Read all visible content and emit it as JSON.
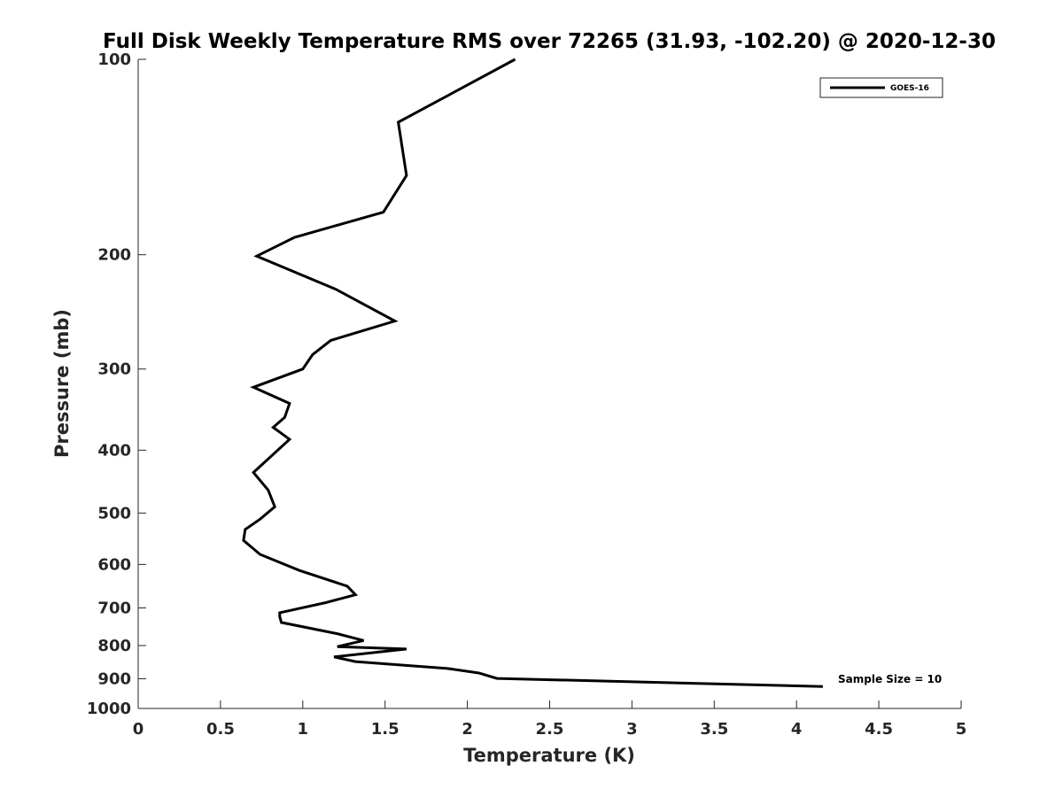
{
  "chart_data": {
    "type": "line",
    "title": "Full Disk Weekly Temperature RMS over 72265 (31.93, -102.20) @ 2020-12-30",
    "xlabel": "Temperature (K)",
    "ylabel": "Pressure (mb)",
    "xlim": [
      0,
      5
    ],
    "ylim": [
      1000,
      100
    ],
    "yscale": "log",
    "y_reversed": true,
    "grid": false,
    "legend_position": "top-right",
    "x_ticks": [
      "0",
      "0.5",
      "1",
      "1.5",
      "2",
      "2.5",
      "3",
      "3.5",
      "4",
      "4.5",
      "5"
    ],
    "y_ticks": [
      "100",
      "200",
      "300",
      "400",
      "500",
      "600",
      "700",
      "800",
      "900",
      "1000"
    ],
    "series": [
      {
        "name": "GOES-16",
        "color": "#000000",
        "points": [
          [
            2.29,
            100
          ],
          [
            1.58,
            125
          ],
          [
            1.63,
            151
          ],
          [
            1.49,
            172
          ],
          [
            0.95,
            188
          ],
          [
            0.72,
            201
          ],
          [
            1.2,
            226
          ],
          [
            1.56,
            253
          ],
          [
            1.17,
            271
          ],
          [
            1.06,
            285
          ],
          [
            1.0,
            300
          ],
          [
            0.7,
            320
          ],
          [
            0.92,
            339
          ],
          [
            0.89,
            356
          ],
          [
            0.82,
            369
          ],
          [
            0.92,
            385
          ],
          [
            0.7,
            433
          ],
          [
            0.79,
            461
          ],
          [
            0.83,
            489
          ],
          [
            0.74,
            511
          ],
          [
            0.65,
            530
          ],
          [
            0.64,
            551
          ],
          [
            0.74,
            579
          ],
          [
            0.98,
            613
          ],
          [
            1.27,
            648
          ],
          [
            1.32,
            668
          ],
          [
            1.14,
            687
          ],
          [
            0.86,
            712
          ],
          [
            0.86,
            722
          ],
          [
            0.87,
            737
          ],
          [
            1.21,
            767
          ],
          [
            1.37,
            786
          ],
          [
            1.21,
            803
          ],
          [
            1.63,
            810
          ],
          [
            1.19,
            833
          ],
          [
            1.32,
            847
          ],
          [
            1.88,
            868
          ],
          [
            2.07,
            882
          ],
          [
            2.18,
            899
          ],
          [
            4.16,
            925
          ]
        ]
      }
    ],
    "annotations": [
      "Sample Size = 10"
    ]
  }
}
